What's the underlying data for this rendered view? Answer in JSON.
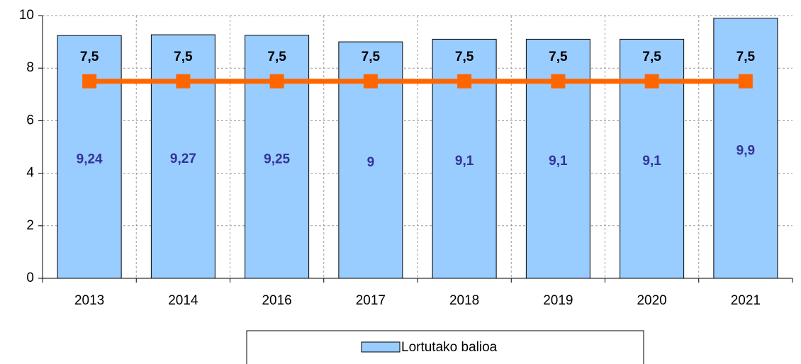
{
  "chart_data": {
    "type": "bar",
    "categories": [
      "2013",
      "2014",
      "2016",
      "2017",
      "2018",
      "2019",
      "2020",
      "2021"
    ],
    "series": [
      {
        "name": "Lortutako balioa",
        "type": "bar",
        "color": "#99ccff",
        "values": [
          9.24,
          9.27,
          9.25,
          9,
          9.1,
          9.1,
          9.1,
          9.9
        ],
        "value_labels": [
          "9,24",
          "9,27",
          "9,25",
          "9",
          "9,1",
          "9,1",
          "9,1",
          "9,9"
        ]
      },
      {
        "type": "line",
        "color": "#ff6600",
        "values": [
          7.5,
          7.5,
          7.5,
          7.5,
          7.5,
          7.5,
          7.5,
          7.5
        ],
        "value_labels": [
          "7,5",
          "7,5",
          "7,5",
          "7,5",
          "7,5",
          "7,5",
          "7,5",
          "7,5"
        ]
      }
    ],
    "ylim": [
      0,
      10
    ],
    "yticks": [
      0,
      2,
      4,
      6,
      8,
      10
    ],
    "grid": true,
    "legend": "bottom"
  }
}
